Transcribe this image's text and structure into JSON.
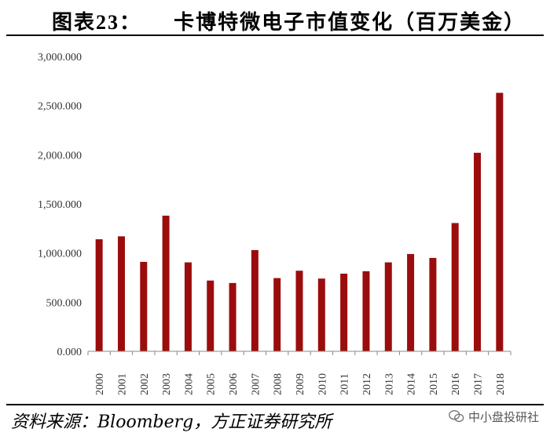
{
  "header": {
    "figure_label": "图表23：",
    "title": "卡博特微电子市值变化（百万美金）"
  },
  "footer": {
    "source": "资料来源：Bloomberg，方正证券研究所",
    "watermark": "中小盘投研社"
  },
  "chart_data": {
    "type": "bar",
    "categories": [
      "2000",
      "2001",
      "2002",
      "2003",
      "2004",
      "2005",
      "2006",
      "2007",
      "2008",
      "2009",
      "2010",
      "2011",
      "2012",
      "2013",
      "2014",
      "2015",
      "2016",
      "2017",
      "2018"
    ],
    "values": [
      1140,
      1170,
      910,
      1380,
      905,
      720,
      695,
      1030,
      745,
      820,
      740,
      790,
      815,
      905,
      990,
      950,
      1305,
      2020,
      2630
    ],
    "ylim": [
      0,
      3000
    ],
    "yticks": [
      0,
      500,
      1000,
      1500,
      2000,
      2500,
      3000
    ],
    "ytick_labels": [
      "0.000",
      "500.000",
      "1,000.000",
      "1,500.000",
      "2,000.000",
      "2,500.000",
      "3,000.000"
    ],
    "grid": false,
    "bar_color": "#9b0d0d"
  }
}
